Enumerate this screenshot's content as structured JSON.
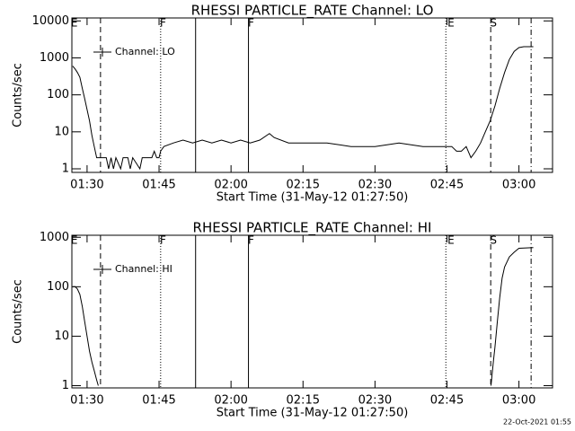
{
  "chart_data": [
    {
      "type": "line",
      "title": "RHESSI PARTICLE_RATE Channel: LO",
      "xlabel": "Start Time (31-May-12 01:27:50)",
      "ylabel": "Counts/sec",
      "log_y": true,
      "xlim": [
        "01:26:50",
        "03:07:00"
      ],
      "ylim": [
        0.8,
        12000
      ],
      "xticks": [
        "01:30",
        "01:45",
        "02:00",
        "02:15",
        "02:30",
        "02:45",
        "03:00"
      ],
      "yticks": [
        1,
        10,
        100,
        1000,
        10000
      ],
      "series": [
        {
          "name": "Channel: LO",
          "color": "#000000",
          "x": [
            "01:27:00",
            "01:27:30",
            "01:28:00",
            "01:28:30",
            "01:29:00",
            "01:29:30",
            "01:30:00",
            "01:30:30",
            "01:31:00",
            "01:31:30",
            "01:32:00",
            "01:33:00",
            "01:34:00",
            "01:34:30",
            "01:35:00",
            "01:35:30",
            "01:36:00",
            "01:37:00",
            "01:37:30",
            "01:38:30",
            "01:39:00",
            "01:39:30",
            "01:41:00",
            "01:41:30",
            "01:43:00",
            "01:43:30",
            "01:44:00",
            "01:44:30",
            "01:45:00",
            "01:45:20",
            "01:46:00",
            "01:48:00",
            "01:50:00",
            "01:52:00",
            "01:54:00",
            "01:56:00",
            "01:58:00",
            "02:00:00",
            "02:02:00",
            "02:04:00",
            "02:06:00",
            "02:08:00",
            "02:09:00",
            "02:12:00",
            "02:15:00",
            "02:20:00",
            "02:25:00",
            "02:30:00",
            "02:35:00",
            "02:40:00",
            "02:45:00",
            "02:46:00",
            "02:47:00",
            "02:48:00",
            "02:49:00",
            "02:50:00",
            "02:51:00",
            "02:52:00",
            "02:53:00",
            "02:54:00",
            "02:55:00",
            "02:56:00",
            "02:57:00",
            "02:58:00",
            "02:59:00",
            "03:00:00",
            "03:01:00",
            "03:03:00"
          ],
          "values": [
            600,
            500,
            400,
            300,
            150,
            80,
            40,
            20,
            8,
            4,
            2,
            2,
            2,
            1,
            2,
            1,
            2,
            1,
            2,
            2,
            1,
            2,
            1,
            2,
            2,
            2,
            3,
            2,
            2,
            3,
            4,
            5,
            6,
            5,
            6,
            5,
            6,
            5,
            6,
            5,
            6,
            9,
            7,
            5,
            5,
            5,
            4,
            4,
            5,
            4,
            4,
            4,
            3,
            3,
            4,
            2,
            3,
            5,
            10,
            20,
            50,
            150,
            400,
            900,
            1500,
            1900,
            2000,
            2000
          ]
        }
      ],
      "vlines": [
        {
          "x": "01:32:48",
          "style": "dashed"
        },
        {
          "x": "01:45:20",
          "style": "dotted"
        },
        {
          "x": "01:52:37",
          "style": "solid"
        },
        {
          "x": "02:03:38",
          "style": "solid"
        },
        {
          "x": "02:44:46",
          "style": "dotted"
        },
        {
          "x": "02:54:07",
          "style": "dashed"
        },
        {
          "x": "03:02:32",
          "style": "dashdot"
        }
      ],
      "annotations": [
        {
          "text": "E",
          "x": "01:27:20"
        },
        {
          "text": "F",
          "x": "01:45:50"
        },
        {
          "text": "F",
          "x": "02:04:10"
        },
        {
          "text": "E",
          "x": "02:45:50"
        },
        {
          "text": "S",
          "x": "02:54:40"
        }
      ]
    },
    {
      "type": "line",
      "title": "RHESSI PARTICLE_RATE Channel: HI",
      "xlabel": "Start Time (31-May-12 01:27:50)",
      "ylabel": "Counts/sec",
      "log_y": true,
      "xlim": [
        "01:26:50",
        "03:07:00"
      ],
      "ylim": [
        0.9,
        1100
      ],
      "xticks": [
        "01:30",
        "01:45",
        "02:00",
        "02:15",
        "02:30",
        "02:45",
        "03:00"
      ],
      "yticks": [
        1,
        10,
        100,
        1000
      ],
      "series": [
        {
          "name": "Channel: HI",
          "color": "#000000",
          "x": [
            "01:27:00",
            "01:27:30",
            "01:28:00",
            "01:28:30",
            "01:29:00",
            "01:29:30",
            "01:30:00",
            "01:30:30",
            "01:31:00",
            "01:31:30",
            "01:32:00",
            "01:32:20",
            "01:32:40",
            "02:54:00",
            "02:54:10",
            "02:54:40",
            "02:55:00",
            "02:55:30",
            "02:56:00",
            "02:56:30",
            "02:57:00",
            "02:58:00",
            "02:59:00",
            "03:00:00",
            "03:03:00"
          ],
          "values": [
            100,
            100,
            90,
            70,
            40,
            20,
            10,
            5,
            3,
            2,
            1.3,
            1,
            null,
            null,
            1,
            3,
            6,
            20,
            60,
            150,
            250,
            400,
            500,
            600,
            620
          ]
        }
      ],
      "vlines": [
        {
          "x": "01:32:48",
          "style": "dashed"
        },
        {
          "x": "01:45:20",
          "style": "dotted"
        },
        {
          "x": "01:52:37",
          "style": "solid"
        },
        {
          "x": "02:03:38",
          "style": "solid"
        },
        {
          "x": "02:44:46",
          "style": "dotted"
        },
        {
          "x": "02:54:07",
          "style": "dashed"
        },
        {
          "x": "03:02:32",
          "style": "dashdot"
        }
      ],
      "annotations": [
        {
          "text": "E",
          "x": "01:27:20"
        },
        {
          "text": "F",
          "x": "01:45:50"
        },
        {
          "text": "F",
          "x": "02:04:10"
        },
        {
          "text": "E",
          "x": "02:45:50"
        },
        {
          "text": "S",
          "x": "02:54:40"
        }
      ]
    }
  ],
  "footer": "22-Oct-2021 01:55"
}
